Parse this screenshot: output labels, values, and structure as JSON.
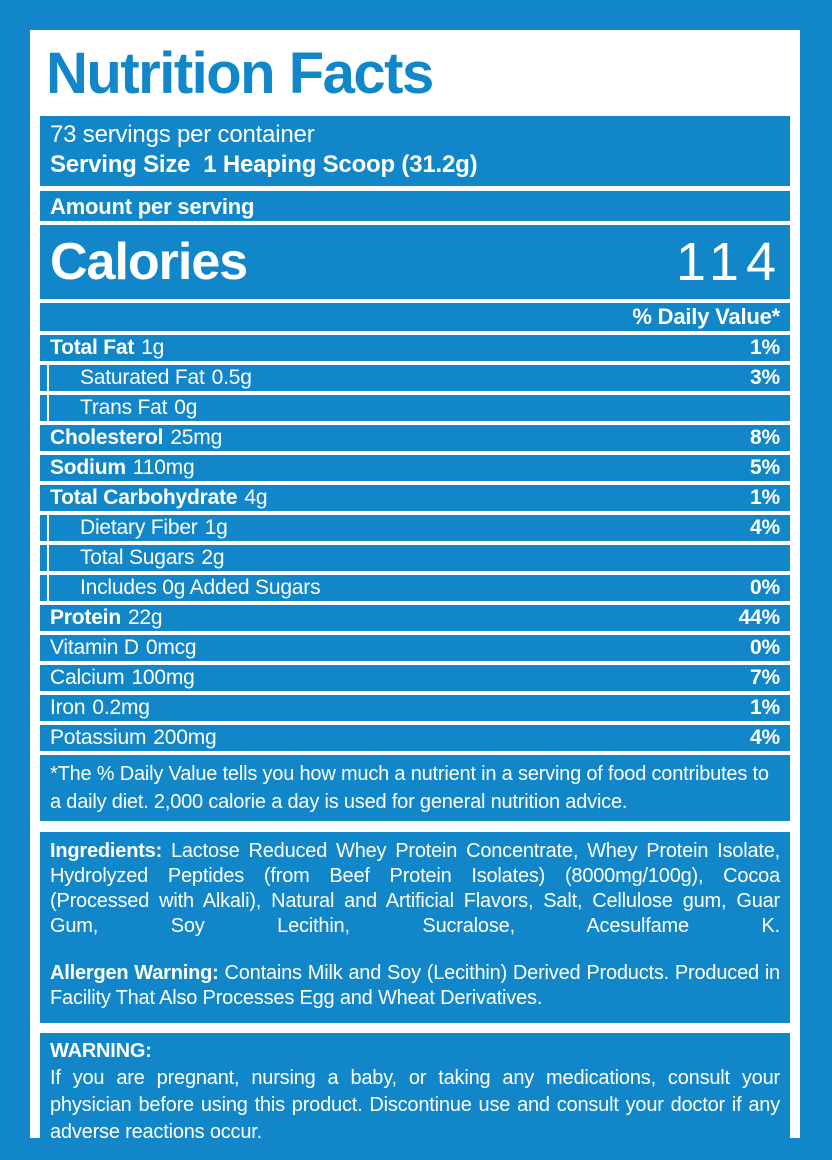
{
  "colors": {
    "brand_blue": "#1187c9",
    "panel_white": "#ffffff"
  },
  "header": {
    "title": "Nutrition Facts"
  },
  "serving_info": {
    "servings_per_container": "73 servings per container",
    "serving_size": "Serving Size  1 Heaping Scoop (31.2g)"
  },
  "calories": {
    "section_label": "Amount per serving",
    "label": "Calories",
    "value": "114"
  },
  "daily_value_header": "% Daily Value*",
  "nutrients": [
    {
      "label": "Total Fat",
      "amount": "1g",
      "dv": "1%"
    },
    {
      "label": "Saturated Fat",
      "amount": "0.5g",
      "dv": "3%"
    },
    {
      "label": "Trans Fat",
      "amount": "0g",
      "dv": ""
    },
    {
      "label": "Cholesterol",
      "amount": "25mg",
      "dv": "8%"
    },
    {
      "label": "Sodium",
      "amount": "110mg",
      "dv": "5%"
    },
    {
      "label": "Total Carbohydrate",
      "amount": "4g",
      "dv": "1%"
    },
    {
      "label": "Dietary Fiber",
      "amount": "1g",
      "dv": "4%"
    },
    {
      "label": "Total Sugars",
      "amount": "2g",
      "dv": ""
    },
    {
      "label": "Includes 0g Added Sugars",
      "amount": "",
      "dv": "0%"
    },
    {
      "label": "Protein",
      "amount": "22g",
      "dv": "44%"
    },
    {
      "label": "Vitamin D",
      "amount": "0mcg",
      "dv": "0%"
    },
    {
      "label": "Calcium",
      "amount": "100mg",
      "dv": "7%"
    },
    {
      "label": "Iron",
      "amount": "0.2mg",
      "dv": "1%"
    },
    {
      "label": "Potassium",
      "amount": "200mg",
      "dv": "4%"
    }
  ],
  "footnote": "*The % Daily Value tells you how much a nutrient in a serving of food contributes to a daily diet. 2,000 calorie a day is used for general nutrition advice.",
  "ingredients": {
    "label": "Ingredients:",
    "text": "Lactose Reduced Whey Protein Concentrate, Whey Protein Isolate, Hydrolyzed Peptides (from Beef Protein Isolates) (8000mg/100g), Cocoa (Processed with Alkali), Natural and Artificial Flavors, Salt, Cellulose gum, Guar Gum, Soy Lecithin, Sucralose, Acesulfame K."
  },
  "allergen": {
    "label": "Allergen Warning:",
    "text": "Contains Milk and Soy (Lecithin) Derived Products. Produced in Facility That Also Processes Egg and Wheat Derivatives."
  },
  "warning": {
    "label": "WARNING:",
    "text": "If you are pregnant, nursing a baby, or taking any medications, consult your physician before using this product. Discontinue use and consult your doctor if any adverse reactions occur."
  }
}
